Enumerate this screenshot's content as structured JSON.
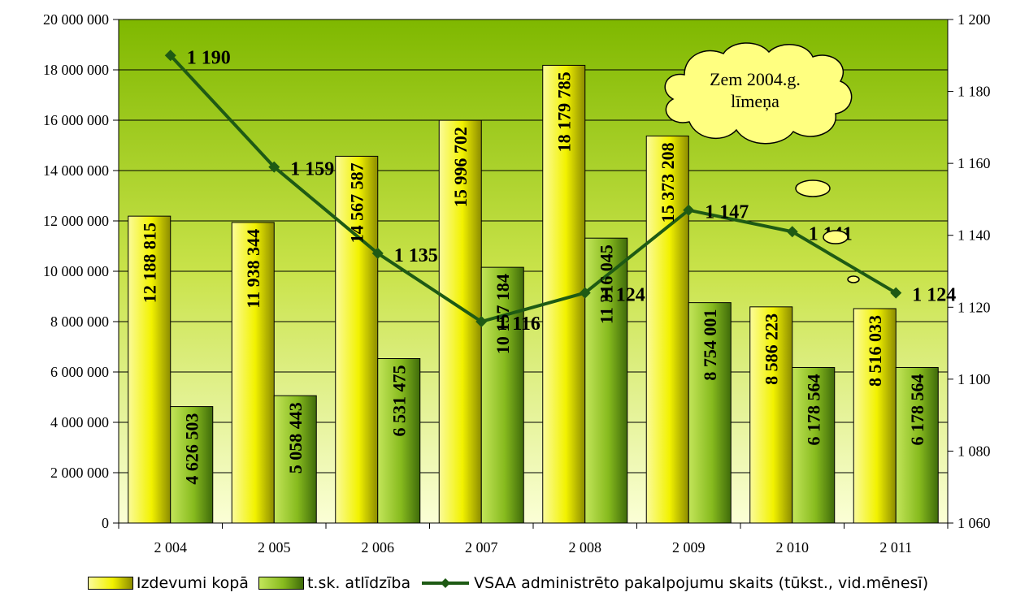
{
  "chart_data": {
    "type": "bar",
    "categories": [
      "2 004",
      "2 005",
      "2 006",
      "2 007",
      "2 008",
      "2 009",
      "2 010",
      "2 011"
    ],
    "series": [
      {
        "name": "Izdevumi kopā",
        "axis": "left",
        "values": [
          12188815,
          11938344,
          14567587,
          15996702,
          18179785,
          15373208,
          8586223,
          8516033
        ],
        "labels": [
          "12 188 815",
          "11 938 344",
          "14 567 587",
          "15 996 702",
          "18 179 785",
          "15 373 208",
          "8 586 223",
          "8 516 033"
        ],
        "color": "#f2f200"
      },
      {
        "name": "t.sk. atlīdzība",
        "axis": "left",
        "values": [
          4626503,
          5058443,
          6531475,
          10157184,
          11316045,
          8754001,
          6178564,
          6178564
        ],
        "labels": [
          "4 626 503",
          "5 058 443",
          "6 531 475",
          "10 157 184",
          "11 316 045",
          "8 754 001",
          "6 178 564",
          "6 178 564"
        ],
        "color": "#87bb1e"
      },
      {
        "name": "VSAA administrēto pakalpojumu skaits (tūkst., vid.mēnesī)",
        "type": "line",
        "axis": "right",
        "values": [
          1190,
          1159,
          1135,
          1116,
          1124,
          1147,
          1141,
          1124
        ],
        "labels": [
          "1 190",
          "1 159",
          "1 135",
          "1 116",
          "1 124",
          "1 147",
          "1 141",
          "1 124"
        ],
        "color": "#1e5a14"
      }
    ],
    "y_left": {
      "ylim": [
        0,
        20000000
      ],
      "ticks": [
        "0",
        "2 000 000",
        "4 000 000",
        "6 000 000",
        "8 000 000",
        "10 000 000",
        "12 000 000",
        "14 000 000",
        "16 000 000",
        "18 000 000",
        "20 000 000"
      ]
    },
    "y_right": {
      "ylim": [
        1060,
        1200
      ],
      "ticks": [
        "1 060",
        "1 080",
        "1 100",
        "1 120",
        "1 140",
        "1 160",
        "1 180",
        "1 200"
      ]
    },
    "grid": true,
    "legend_position": "bottom",
    "callout": [
      "Zem 2004.g.",
      "līmeņa"
    ]
  }
}
